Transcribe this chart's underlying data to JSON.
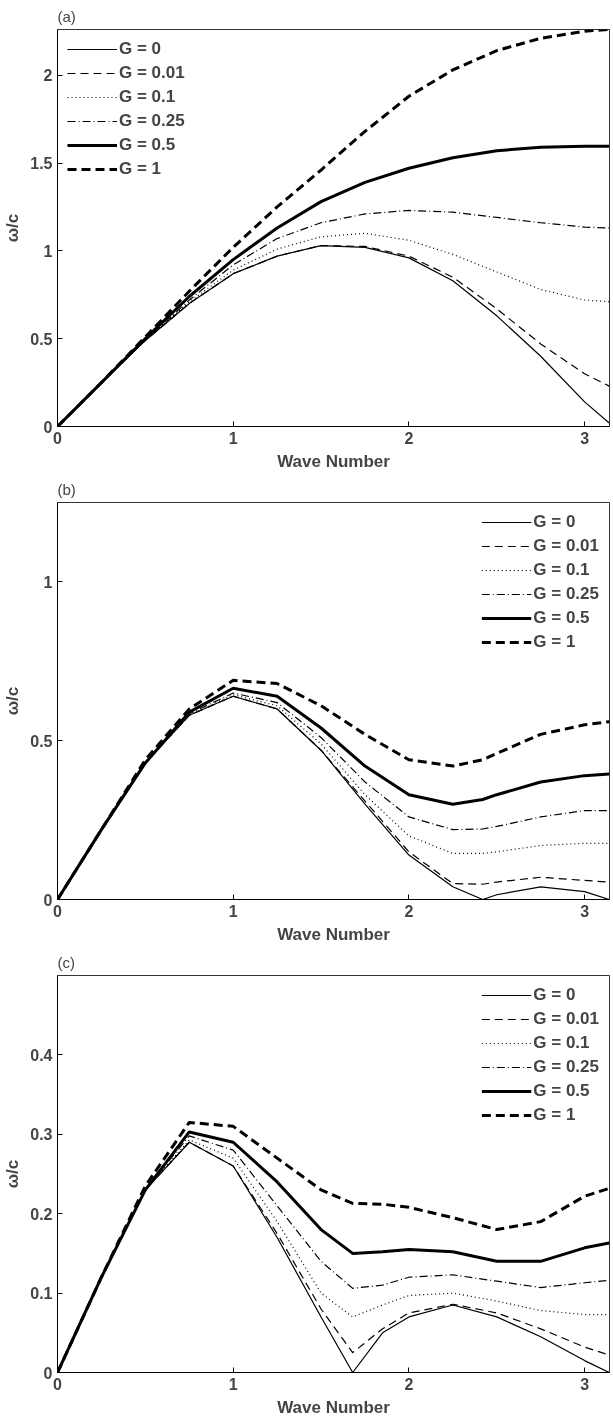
{
  "chart_data": [
    {
      "type": "line",
      "title": "(a)",
      "xlabel": "Wave Number",
      "ylabel": "ω/c",
      "xlim": [
        0,
        3.1416
      ],
      "ylim": [
        0,
        2.26
      ],
      "xticks": [
        0,
        1,
        2,
        3
      ],
      "yticks": [
        0,
        0.5,
        1,
        1.5,
        2
      ],
      "legend": "top left",
      "grid": false,
      "x": [
        0,
        0.25,
        0.5,
        0.75,
        1,
        1.25,
        1.5,
        1.75,
        2,
        2.25,
        2.5,
        2.75,
        3,
        3.14
      ],
      "series": [
        {
          "name": "G = 0",
          "color": "#000000",
          "line_style": "solid",
          "values": [
            0,
            0.25,
            0.49,
            0.7,
            0.87,
            0.97,
            1.03,
            1.02,
            0.96,
            0.83,
            0.63,
            0.4,
            0.14,
            0.02
          ]
        },
        {
          "name": "G = 0.01",
          "color": "#000000",
          "line_style": "dashed",
          "values": [
            0,
            0.25,
            0.49,
            0.7,
            0.87,
            0.97,
            1.03,
            1.025,
            0.97,
            0.85,
            0.67,
            0.47,
            0.3,
            0.23
          ]
        },
        {
          "name": "G = 0.1",
          "color": "#000000",
          "line_style": "dotted",
          "values": [
            0,
            0.25,
            0.49,
            0.71,
            0.89,
            1.01,
            1.08,
            1.1,
            1.06,
            0.98,
            0.88,
            0.78,
            0.72,
            0.71
          ]
        },
        {
          "name": "G = 0.25",
          "color": "#000000",
          "line_style": "dashdot",
          "values": [
            0,
            0.25,
            0.49,
            0.72,
            0.92,
            1.07,
            1.16,
            1.21,
            1.23,
            1.22,
            1.19,
            1.16,
            1.135,
            1.13
          ]
        },
        {
          "name": "G = 0.5",
          "color": "#000000",
          "line_style": "solid",
          "values": [
            0,
            0.25,
            0.5,
            0.74,
            0.95,
            1.13,
            1.28,
            1.39,
            1.47,
            1.53,
            1.57,
            1.59,
            1.595,
            1.595
          ]
        },
        {
          "name": "G = 1",
          "color": "#000000",
          "line_style": "dashed",
          "values": [
            0,
            0.25,
            0.51,
            0.77,
            1.02,
            1.25,
            1.46,
            1.68,
            1.88,
            2.03,
            2.14,
            2.21,
            2.25,
            2.26
          ]
        }
      ]
    },
    {
      "type": "line",
      "title": "(b)",
      "xlabel": "Wave Number",
      "ylabel": "ω/c",
      "xlim": [
        0,
        3.1416
      ],
      "ylim": [
        0,
        1.25
      ],
      "xticks": [
        0,
        1,
        2,
        3
      ],
      "yticks": [
        0,
        0.5,
        1
      ],
      "legend": "top right",
      "grid": false,
      "x": [
        0,
        0.25,
        0.5,
        0.75,
        1,
        1.25,
        1.5,
        1.75,
        2,
        2.25,
        2.42,
        2.5,
        2.75,
        3,
        3.14
      ],
      "series": [
        {
          "name": "G = 0",
          "color": "#000000",
          "line_style": "solid",
          "values": [
            0,
            0.22,
            0.43,
            0.58,
            0.64,
            0.6,
            0.47,
            0.3,
            0.14,
            0.04,
            0,
            0.015,
            0.04,
            0.025,
            0
          ]
        },
        {
          "name": "G = 0.01",
          "color": "#000000",
          "line_style": "dashed",
          "values": [
            0,
            0.22,
            0.43,
            0.58,
            0.64,
            0.6,
            0.47,
            0.31,
            0.15,
            0.05,
            0.048,
            0.055,
            0.07,
            0.06,
            0.055
          ]
        },
        {
          "name": "G = 0.1",
          "color": "#000000",
          "line_style": "dotted",
          "values": [
            0,
            0.22,
            0.43,
            0.58,
            0.645,
            0.61,
            0.49,
            0.33,
            0.2,
            0.145,
            0.145,
            0.15,
            0.17,
            0.177,
            0.177
          ]
        },
        {
          "name": "G = 0.25",
          "color": "#000000",
          "line_style": "dashdot",
          "values": [
            0,
            0.22,
            0.43,
            0.585,
            0.65,
            0.62,
            0.51,
            0.37,
            0.26,
            0.22,
            0.222,
            0.23,
            0.26,
            0.28,
            0.28
          ]
        },
        {
          "name": "G = 0.5",
          "color": "#000000",
          "line_style": "solid",
          "values": [
            0,
            0.22,
            0.43,
            0.59,
            0.665,
            0.64,
            0.54,
            0.42,
            0.33,
            0.3,
            0.315,
            0.33,
            0.37,
            0.39,
            0.395
          ]
        },
        {
          "name": "G = 1",
          "color": "#000000",
          "line_style": "dashed",
          "values": [
            0,
            0.22,
            0.44,
            0.6,
            0.69,
            0.68,
            0.61,
            0.52,
            0.44,
            0.42,
            0.44,
            0.46,
            0.52,
            0.55,
            0.56
          ]
        }
      ]
    },
    {
      "type": "line",
      "title": "(c)",
      "xlabel": "Wave Number",
      "ylabel": "ω/c",
      "xlim": [
        0,
        3.1416
      ],
      "ylim": [
        0,
        0.5
      ],
      "xticks": [
        0,
        1,
        2,
        3
      ],
      "yticks": [
        0,
        0.1,
        0.2,
        0.3,
        0.4
      ],
      "legend": "top right",
      "grid": false,
      "x": [
        0,
        0.25,
        0.5,
        0.75,
        1,
        1.25,
        1.5,
        1.68,
        1.85,
        2,
        2.25,
        2.5,
        2.75,
        3,
        3.14
      ],
      "series": [
        {
          "name": "G = 0",
          "color": "#000000",
          "line_style": "solid",
          "values": [
            0,
            0.12,
            0.23,
            0.29,
            0.26,
            0.17,
            0.07,
            0,
            0.05,
            0.07,
            0.085,
            0.07,
            0.045,
            0.015,
            0
          ]
        },
        {
          "name": "G = 0.01",
          "color": "#000000",
          "line_style": "dashed",
          "values": [
            0,
            0.12,
            0.23,
            0.29,
            0.26,
            0.175,
            0.08,
            0.025,
            0.055,
            0.075,
            0.086,
            0.075,
            0.055,
            0.032,
            0.022
          ]
        },
        {
          "name": "G = 0.1",
          "color": "#000000",
          "line_style": "dotted",
          "values": [
            0,
            0.12,
            0.23,
            0.293,
            0.27,
            0.19,
            0.1,
            0.07,
            0.085,
            0.097,
            0.1,
            0.09,
            0.078,
            0.073,
            0.073
          ]
        },
        {
          "name": "G = 0.25",
          "color": "#000000",
          "line_style": "dashdot",
          "values": [
            0,
            0.12,
            0.23,
            0.298,
            0.28,
            0.21,
            0.14,
            0.106,
            0.11,
            0.12,
            0.123,
            0.115,
            0.107,
            0.113,
            0.116
          ]
        },
        {
          "name": "G = 0.5",
          "color": "#000000",
          "line_style": "solid",
          "values": [
            0,
            0.12,
            0.23,
            0.303,
            0.29,
            0.24,
            0.18,
            0.15,
            0.152,
            0.155,
            0.152,
            0.14,
            0.14,
            0.157,
            0.163
          ]
        },
        {
          "name": "G = 1",
          "color": "#000000",
          "line_style": "dashed",
          "values": [
            0,
            0.12,
            0.235,
            0.315,
            0.31,
            0.27,
            0.23,
            0.213,
            0.212,
            0.208,
            0.195,
            0.18,
            0.19,
            0.222,
            0.232
          ]
        }
      ]
    }
  ]
}
